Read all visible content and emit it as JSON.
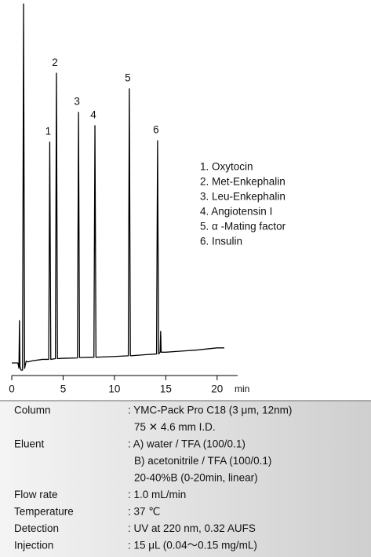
{
  "chart_data": {
    "type": "line",
    "x": [
      0,
      0.6,
      0.7,
      0.75,
      0.8,
      0.9,
      1.05,
      1.15,
      1.25,
      1.4,
      1.6,
      2,
      3,
      3.6,
      3.7,
      3.8,
      4.25,
      4.35,
      4.45,
      5,
      6.4,
      6.5,
      6.6,
      8.0,
      8.1,
      8.2,
      10,
      11.35,
      11.45,
      11.55,
      13,
      14.1,
      14.2,
      14.3,
      14.45,
      14.5,
      14.55,
      15,
      16,
      17,
      18,
      19,
      20,
      20.7
    ],
    "series": [
      {
        "color": "#000000",
        "values": [
          0,
          0,
          -1.5,
          11.8,
          -1,
          -2,
          -2,
          100,
          -1.5,
          0.5,
          0.3,
          0.6,
          1,
          1,
          61.5,
          1,
          1.2,
          80.7,
          1.2,
          1.3,
          1.4,
          69.8,
          1.5,
          1.6,
          66.1,
          1.6,
          1.8,
          2,
          76.4,
          2,
          2.3,
          2.5,
          61.9,
          2.5,
          3,
          8.8,
          3,
          3,
          3.2,
          3.4,
          3.6,
          3.9,
          4.2,
          4.2
        ]
      }
    ],
    "annotations": [
      {
        "text": "1",
        "x": 3.7,
        "y": 61.5
      },
      {
        "text": "2",
        "x": 4.35,
        "y": 80.7
      },
      {
        "text": "3",
        "x": 6.5,
        "y": 69.8
      },
      {
        "text": "4",
        "x": 8.1,
        "y": 66.1
      },
      {
        "text": "5",
        "x": 11.45,
        "y": 76.4
      },
      {
        "text": "6",
        "x": 14.2,
        "y": 61.9
      }
    ],
    "legend": [
      "1. Oxytocin",
      "2. Met-Enkephalin",
      "3. Leu-Enkephalin",
      "4. Angiotensin I",
      "5. α -Mating factor",
      "6. Insulin"
    ],
    "x_label": "min",
    "xlim": [
      0,
      22
    ],
    "xticks": [
      0,
      5,
      10,
      15,
      20
    ],
    "ylim": [
      -3.5,
      100
    ]
  },
  "conditions": [
    {
      "label": "Column",
      "lines": [
        ": YMC-Pack  Pro C18  (3 μm, 12nm)",
        "75 ✕ 4.6 mm I.D."
      ]
    },
    {
      "label": "Eluent",
      "lines": [
        ": A) water / TFA (100/0.1)",
        "B) acetonitrile / TFA (100/0.1)",
        "20-40%B (0-20min, linear)"
      ]
    },
    {
      "label": "Flow rate",
      "lines": [
        ": 1.0 mL/min"
      ]
    },
    {
      "label": "Temperature",
      "lines": [
        ": 37 ℃"
      ]
    },
    {
      "label": "Detection",
      "lines": [
        ": UV at 220 nm, 0.32 AUFS"
      ]
    },
    {
      "label": "Injection",
      "lines": [
        ": 15  μL  (0.04～0.15 mg/mL)"
      ]
    }
  ]
}
